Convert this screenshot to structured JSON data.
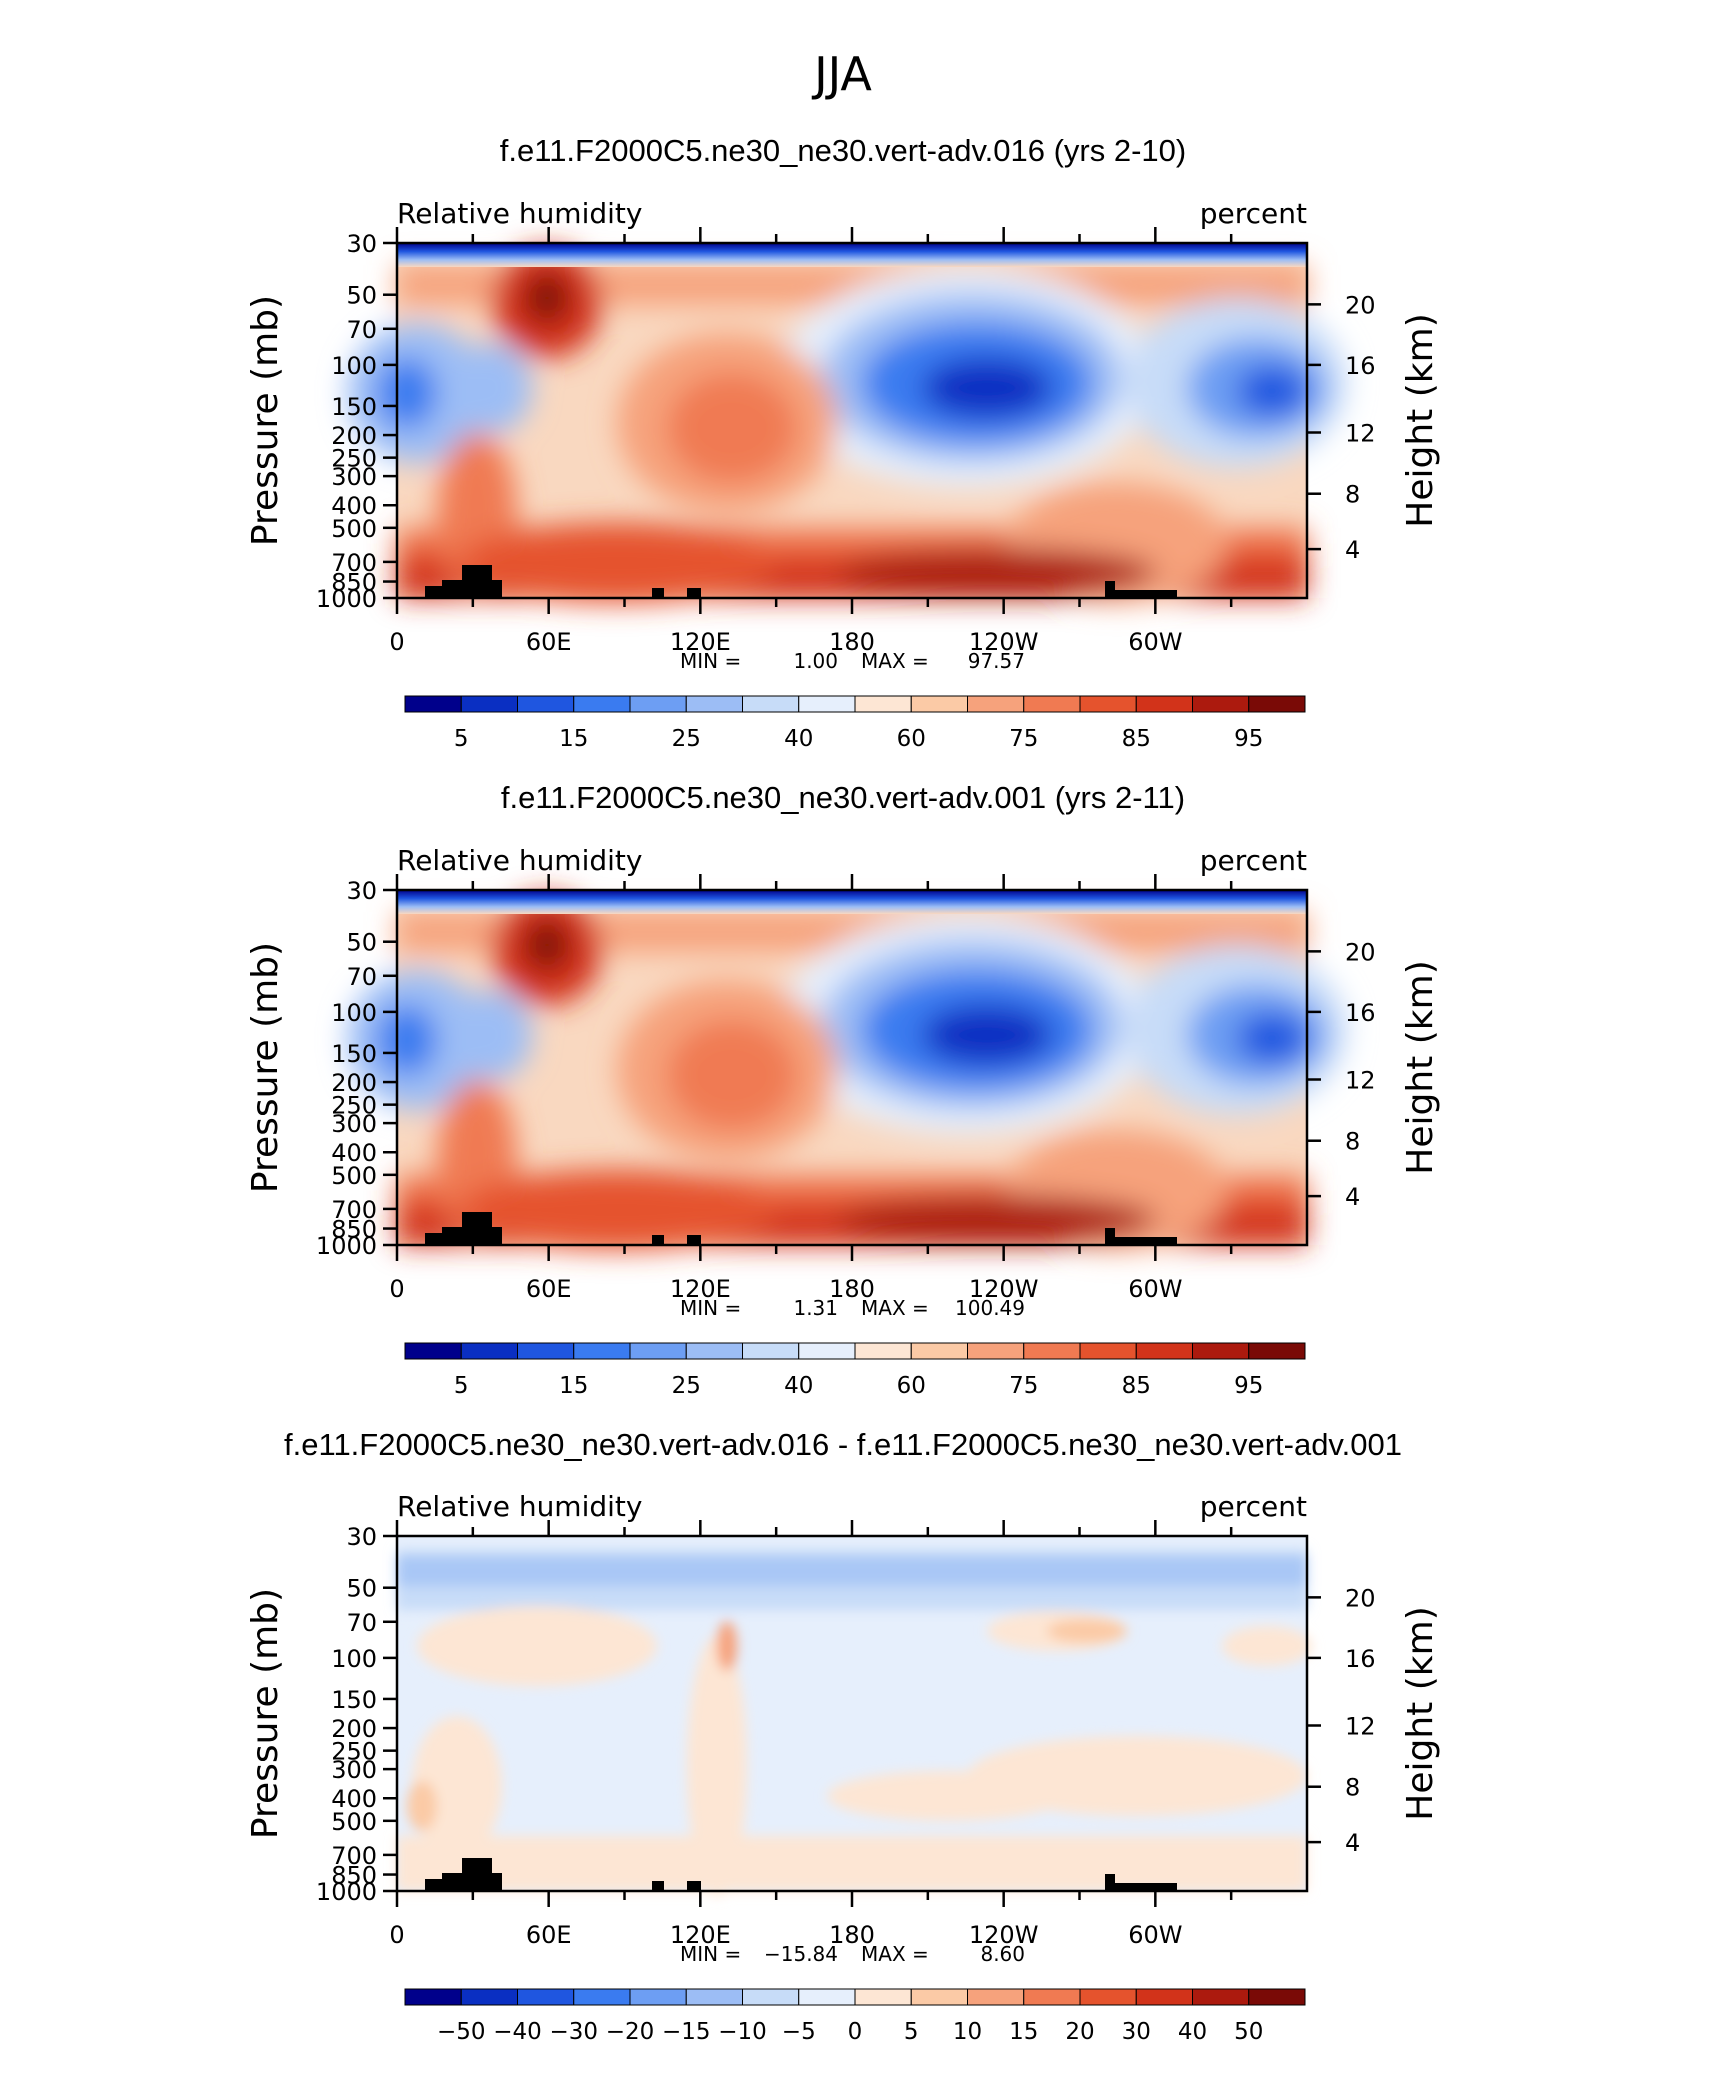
{
  "figure_title": "JJA",
  "chart_data": [
    {
      "type": "heatmap",
      "title": "f.e11.F2000C5.ne30_ne30.vert-adv.016 (yrs 2-10)",
      "variable_label": "Relative humidity",
      "units_label": "percent",
      "ylabel": "Pressure (mb)",
      "y2label": "Height (km)",
      "x_ticks": [
        "0",
        "60E",
        "120E",
        "180",
        "120W",
        "60W"
      ],
      "y_ticks": [
        "30",
        "50",
        "70",
        "100",
        "150",
        "200",
        "250",
        "300",
        "400",
        "500",
        "700",
        "850",
        "1000"
      ],
      "y2_ticks": [
        "20",
        "16",
        "12",
        "8",
        "4"
      ],
      "xlim": [
        0,
        360
      ],
      "ylim": [
        1000,
        30
      ],
      "min_text": "MIN =",
      "min_value": "1.00",
      "max_text": "MAX =",
      "max_value": "97.57",
      "colorbar_labels": [
        "5",
        "15",
        "25",
        "40",
        "60",
        "75",
        "85",
        "95"
      ],
      "colorbar_colors": [
        "#00008b",
        "#0a2fc2",
        "#1f56e0",
        "#3a7bf0",
        "#6d9ef3",
        "#9cbdf5",
        "#c7dcf8",
        "#e6effc",
        "#fde6d4",
        "#fbcaa6",
        "#f6a27c",
        "#f07a52",
        "#e5532d",
        "#d2331a",
        "#ac1a0e",
        "#7a0a06"
      ]
    },
    {
      "type": "heatmap",
      "title": "f.e11.F2000C5.ne30_ne30.vert-adv.001 (yrs 2-11)",
      "variable_label": "Relative humidity",
      "units_label": "percent",
      "ylabel": "Pressure (mb)",
      "y2label": "Height (km)",
      "x_ticks": [
        "0",
        "60E",
        "120E",
        "180",
        "120W",
        "60W"
      ],
      "y_ticks": [
        "30",
        "50",
        "70",
        "100",
        "150",
        "200",
        "250",
        "300",
        "400",
        "500",
        "700",
        "850",
        "1000"
      ],
      "y2_ticks": [
        "20",
        "16",
        "12",
        "8",
        "4"
      ],
      "xlim": [
        0,
        360
      ],
      "ylim": [
        1000,
        30
      ],
      "min_text": "MIN =",
      "min_value": "1.31",
      "max_text": "MAX =",
      "max_value": "100.49",
      "colorbar_labels": [
        "5",
        "15",
        "25",
        "40",
        "60",
        "75",
        "85",
        "95"
      ],
      "colorbar_colors": [
        "#00008b",
        "#0a2fc2",
        "#1f56e0",
        "#3a7bf0",
        "#6d9ef3",
        "#9cbdf5",
        "#c7dcf8",
        "#e6effc",
        "#fde6d4",
        "#fbcaa6",
        "#f6a27c",
        "#f07a52",
        "#e5532d",
        "#d2331a",
        "#ac1a0e",
        "#7a0a06"
      ]
    },
    {
      "type": "heatmap",
      "title": "f.e11.F2000C5.ne30_ne30.vert-adv.016 - f.e11.F2000C5.ne30_ne30.vert-adv.001",
      "variable_label": "Relative humidity",
      "units_label": "percent",
      "ylabel": "Pressure (mb)",
      "y2label": "Height (km)",
      "x_ticks": [
        "0",
        "60E",
        "120E",
        "180",
        "120W",
        "60W"
      ],
      "y_ticks": [
        "30",
        "50",
        "70",
        "100",
        "150",
        "200",
        "250",
        "300",
        "400",
        "500",
        "700",
        "850",
        "1000"
      ],
      "y2_ticks": [
        "20",
        "16",
        "12",
        "8",
        "4"
      ],
      "xlim": [
        0,
        360
      ],
      "ylim": [
        1000,
        30
      ],
      "min_text": "MIN =",
      "min_value": "−15.84",
      "max_text": "MAX =",
      "max_value": "8.60",
      "colorbar_labels": [
        "−50",
        "−40",
        "−30",
        "−20",
        "−15",
        "−10",
        "−5",
        "0",
        "5",
        "10",
        "15",
        "20",
        "30",
        "40",
        "50"
      ],
      "colorbar_colors": [
        "#00008b",
        "#0a2fc2",
        "#1f56e0",
        "#3a7bf0",
        "#6d9ef3",
        "#9cbdf5",
        "#c7dcf8",
        "#e6effc",
        "#fde6d4",
        "#fbcaa6",
        "#f6a27c",
        "#f07a52",
        "#e5532d",
        "#d2331a",
        "#ac1a0e",
        "#7a0a06"
      ]
    }
  ]
}
